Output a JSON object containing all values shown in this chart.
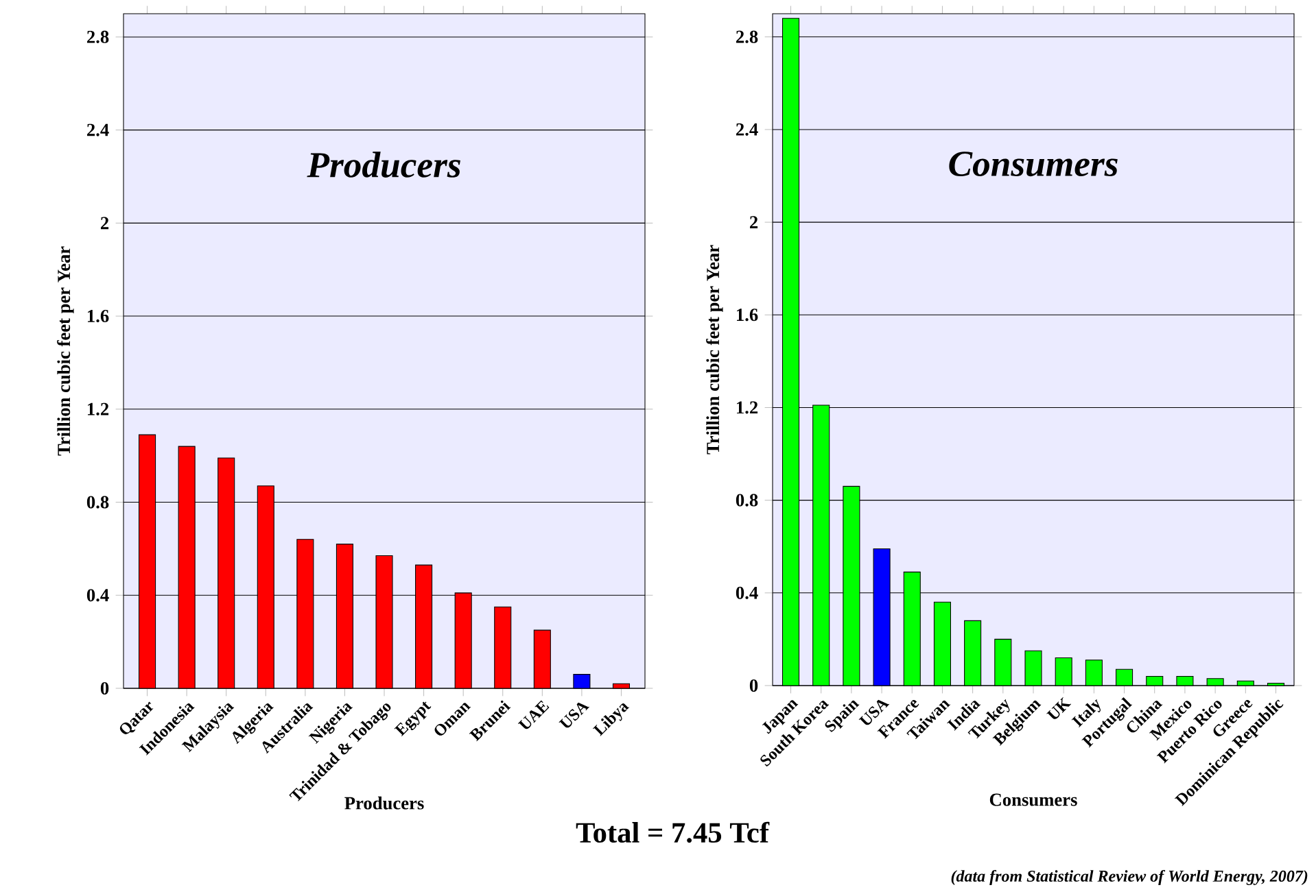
{
  "chart_data": [
    {
      "type": "bar",
      "title": "Producers",
      "xlabel": "Producers",
      "ylabel": "Trillion cubic feet per Year",
      "categories": [
        "Qatar",
        "Indonesia",
        "Malaysia",
        "Algeria",
        "Australia",
        "Nigeria",
        "Trinidad & Tobago",
        "Egypt",
        "Oman",
        "Brunei",
        "UAE",
        "USA",
        "Libya"
      ],
      "values": [
        1.09,
        1.04,
        0.99,
        0.87,
        0.64,
        0.62,
        0.57,
        0.53,
        0.41,
        0.35,
        0.25,
        0.06,
        0.02
      ],
      "colors": [
        "#ff0000",
        "#ff0000",
        "#ff0000",
        "#ff0000",
        "#ff0000",
        "#ff0000",
        "#ff0000",
        "#ff0000",
        "#ff0000",
        "#ff0000",
        "#ff0000",
        "#0000ff",
        "#ff0000"
      ],
      "ylim": [
        0,
        2.9
      ],
      "yticks": [
        0,
        0.4,
        0.8,
        1.2,
        1.6,
        2,
        2.4,
        2.8
      ],
      "grid": "y",
      "annotations": [
        "Total = 7.45 Tcf"
      ]
    },
    {
      "type": "bar",
      "title": "Consumers",
      "xlabel": "Consumers",
      "ylabel": "Trillion cubic feet per Year",
      "categories": [
        "Japan",
        "South Korea",
        "Spain",
        "USA",
        "France",
        "Taiwan",
        "India",
        "Turkey",
        "Belgium",
        "UK",
        "Italy",
        "Portugal",
        "China",
        "Mexico",
        "Puerto Rico",
        "Greece",
        "Dominican Republic"
      ],
      "values": [
        2.88,
        1.21,
        0.86,
        0.59,
        0.49,
        0.36,
        0.28,
        0.2,
        0.15,
        0.12,
        0.11,
        0.07,
        0.04,
        0.04,
        0.03,
        0.02,
        0.01
      ],
      "colors": [
        "#00ff00",
        "#00ff00",
        "#00ff00",
        "#0000ff",
        "#00ff00",
        "#00ff00",
        "#00ff00",
        "#00ff00",
        "#00ff00",
        "#00ff00",
        "#00ff00",
        "#00ff00",
        "#00ff00",
        "#00ff00",
        "#00ff00",
        "#00ff00",
        "#00ff00"
      ],
      "ylim": [
        0,
        2.9
      ],
      "yticks": [
        0,
        0.4,
        0.8,
        1.2,
        1.6,
        2,
        2.4,
        2.8
      ],
      "grid": "y",
      "annotations": [
        "(data from Statistical Review of World Energy, 2007)"
      ]
    }
  ]
}
